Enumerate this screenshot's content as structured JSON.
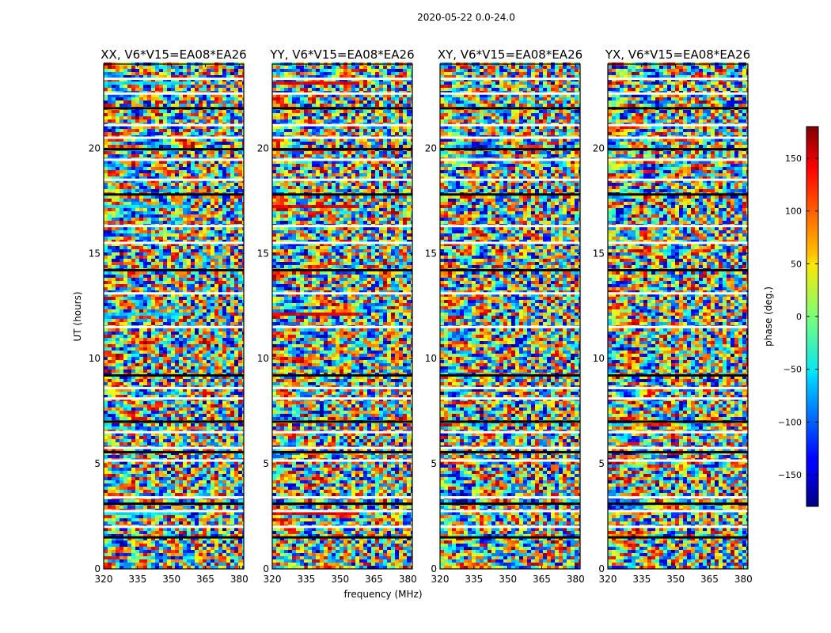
{
  "chart_data": {
    "type": "heatmap",
    "suptitle": "2020-05-22 0.0-24.0",
    "xlabel": "frequency (MHz)",
    "ylabel": "UT (hours)",
    "colorbar_label": "phase (deg.)",
    "colormap": "jet",
    "xlim": [
      320,
      382
    ],
    "ylim": [
      0,
      24
    ],
    "xticks": [
      320,
      335,
      350,
      365,
      380
    ],
    "yticks": [
      0,
      5,
      10,
      15,
      20
    ],
    "clim": [
      -180,
      180
    ],
    "colorbar_ticks": [
      -150,
      -100,
      -50,
      0,
      50,
      100,
      150
    ],
    "colorbar_tick_labels": [
      "−150",
      "−100",
      "−50",
      "0",
      "50",
      "100",
      "150"
    ],
    "panels": [
      {
        "title": "XX, V6*V15=EA08*EA26",
        "cyan_bands": [
          2.5,
          12.0,
          17.2,
          19.8,
          23.0
        ]
      },
      {
        "title": "YY, V6*V15=EA08*EA26",
        "red_bands": [
          2.5,
          12.0,
          17.2,
          19.8,
          23.0
        ]
      },
      {
        "title": "XY, V6*V15=EA08*EA26"
      },
      {
        "title": "YX, V6*V15=EA08*EA26"
      }
    ],
    "flagged_ut_hours": [
      1.5,
      2.0,
      2.75,
      3.1,
      3.4,
      5.15,
      5.55,
      5.75,
      6.5,
      7.0,
      8.1,
      8.6,
      9.2,
      11.5,
      13.1,
      14.2,
      15.5,
      16.3,
      17.8,
      18.5,
      19.45,
      19.95,
      20.5,
      21.1,
      21.9,
      22.6,
      23.3
    ]
  }
}
